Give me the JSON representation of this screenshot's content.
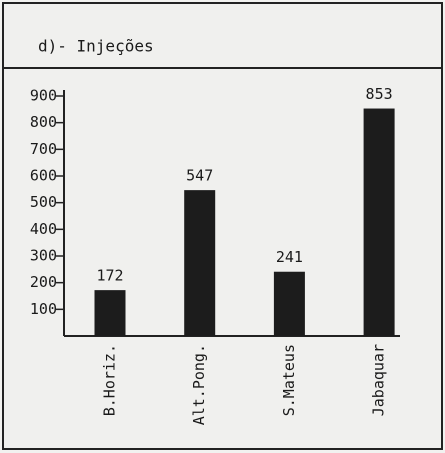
{
  "chart_data": {
    "type": "bar",
    "title": "d)- Injeções",
    "categories": [
      "B.Horiz.",
      "Alt.Pong.",
      "S.Mateus",
      "Jabaquar"
    ],
    "values": [
      172,
      547,
      241,
      853
    ],
    "color": "#1c1c1c",
    "ylim": [
      0,
      900
    ],
    "yticks": [
      100,
      200,
      300,
      400,
      500,
      600,
      700,
      800,
      900
    ],
    "grid": false
  }
}
